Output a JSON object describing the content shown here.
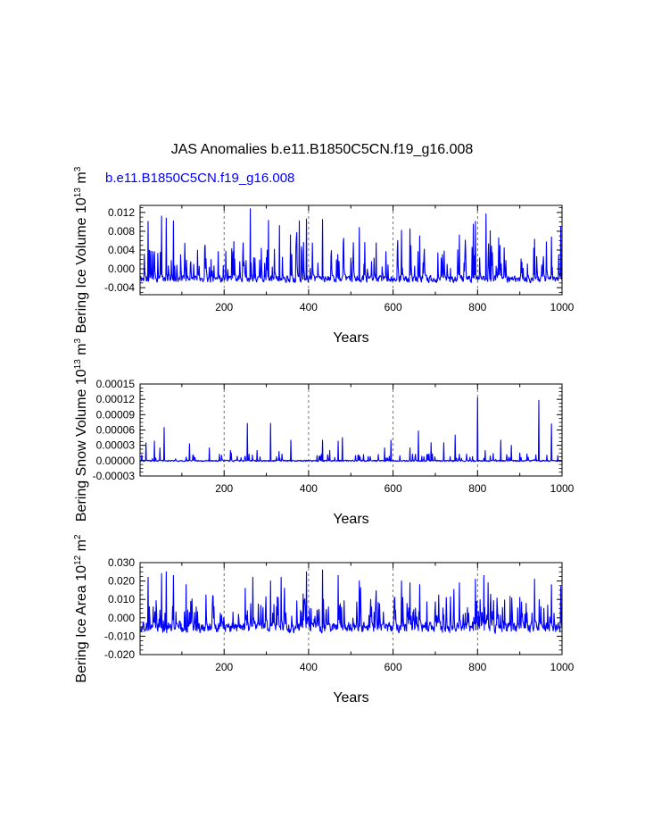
{
  "figure": {
    "title": "JAS Anomalies b.e11.B1850C5CN.f19_g16.008",
    "subtitle": "b.e11.B1850C5CN.f19_g16.008",
    "subtitle_color": "#0000ff",
    "line_color": "#0000ff",
    "gridline_color": "#555555"
  },
  "chart_data": [
    {
      "type": "line",
      "title": "",
      "xlabel": "Years",
      "ylabel_text": "Bering Ice Volume 10",
      "ylabel_exp": "13",
      "ylabel_unit": "m",
      "ylabel_unit_exp": "3",
      "xlim": [
        1,
        1000
      ],
      "ylim": [
        -0.0055,
        0.0135
      ],
      "xticks": [
        200,
        400,
        600,
        800,
        1000
      ],
      "xtick_labels": [
        "200",
        "400",
        "600",
        "800",
        "1000"
      ],
      "yticks": [
        -0.004,
        0.0,
        0.004,
        0.008,
        0.012
      ],
      "ytick_labels": [
        "-0.004",
        "0.000",
        "0.004",
        "0.008",
        "0.012"
      ],
      "grid_x": [
        200,
        400,
        600,
        800
      ],
      "series": [
        {
          "name": "Bering Ice Volume",
          "generator": {
            "seed": 11,
            "baseline": -0.0013,
            "noise_min": -0.004,
            "noise_max": -0.0012,
            "ar": 0.55,
            "p_spike": 0.13,
            "spike_min": 0.002,
            "spike_max": 0.0075,
            "min": -0.0045
          },
          "peaks": [
            {
              "x": 20,
              "y": 0.0101
            },
            {
              "x": 52,
              "y": 0.0112
            },
            {
              "x": 63,
              "y": 0.0108
            },
            {
              "x": 80,
              "y": 0.0102
            },
            {
              "x": 223,
              "y": 0.0058
            },
            {
              "x": 262,
              "y": 0.0128
            },
            {
              "x": 305,
              "y": 0.0103
            },
            {
              "x": 331,
              "y": 0.0092
            },
            {
              "x": 357,
              "y": 0.0072
            },
            {
              "x": 378,
              "y": 0.0102
            },
            {
              "x": 395,
              "y": 0.0106
            },
            {
              "x": 433,
              "y": 0.0105
            },
            {
              "x": 520,
              "y": 0.0088
            },
            {
              "x": 560,
              "y": 0.0055
            },
            {
              "x": 620,
              "y": 0.0082
            },
            {
              "x": 640,
              "y": 0.0085
            },
            {
              "x": 663,
              "y": 0.007
            },
            {
              "x": 757,
              "y": 0.0072
            },
            {
              "x": 790,
              "y": 0.0095
            },
            {
              "x": 795,
              "y": 0.0101
            },
            {
              "x": 820,
              "y": 0.0117
            },
            {
              "x": 830,
              "y": 0.0081
            },
            {
              "x": 850,
              "y": 0.0066
            },
            {
              "x": 935,
              "y": 0.0063
            },
            {
              "x": 975,
              "y": 0.0068
            },
            {
              "x": 997,
              "y": 0.009
            }
          ]
        }
      ]
    },
    {
      "type": "line",
      "title": "",
      "xlabel": "Years",
      "ylabel_text": "Bering Snow Volume 10",
      "ylabel_exp": "13",
      "ylabel_unit": "m",
      "ylabel_unit_exp": "3",
      "xlim": [
        1,
        1000
      ],
      "ylim": [
        -3e-05,
        0.00015
      ],
      "xticks": [
        200,
        400,
        600,
        800,
        1000
      ],
      "xtick_labels": [
        "200",
        "400",
        "600",
        "800",
        "1000"
      ],
      "yticks": [
        -3e-05,
        0.0,
        3e-05,
        6e-05,
        9e-05,
        0.00012,
        0.00015
      ],
      "ytick_labels": [
        "-0.00003",
        "0.00000",
        "0.00003",
        "0.00006",
        "0.00009",
        "0.00012",
        "0.00015"
      ],
      "grid_x": [
        200,
        400,
        600,
        800
      ],
      "series": [
        {
          "name": "Bering Snow Volume",
          "generator": {
            "seed": 23,
            "baseline": 0.0,
            "noise_min": -2e-06,
            "noise_max": 1.5e-06,
            "ar": 0.3,
            "p_spike": 0.06,
            "spike_min": 3e-06,
            "spike_max": 1.4e-05,
            "min": -4e-06
          },
          "peaks": [
            {
              "x": 15,
              "y": 3.5e-05
            },
            {
              "x": 35,
              "y": 3.8e-05
            },
            {
              "x": 48,
              "y": 2.5e-05
            },
            {
              "x": 58,
              "y": 6.5e-05
            },
            {
              "x": 118,
              "y": 3.3e-05
            },
            {
              "x": 165,
              "y": 2.5e-05
            },
            {
              "x": 215,
              "y": 2e-05
            },
            {
              "x": 255,
              "y": 7.3e-05
            },
            {
              "x": 278,
              "y": 2e-05
            },
            {
              "x": 310,
              "y": 7.3e-05
            },
            {
              "x": 330,
              "y": 1.8e-05
            },
            {
              "x": 358,
              "y": 4e-05
            },
            {
              "x": 420,
              "y": 1e-05
            },
            {
              "x": 433,
              "y": 4e-05
            },
            {
              "x": 450,
              "y": 2e-05
            },
            {
              "x": 470,
              "y": 3.8e-05
            },
            {
              "x": 480,
              "y": 4.5e-05
            },
            {
              "x": 530,
              "y": 1.2e-05
            },
            {
              "x": 580,
              "y": 2.5e-05
            },
            {
              "x": 595,
              "y": 4e-05
            },
            {
              "x": 640,
              "y": 2.5e-05
            },
            {
              "x": 660,
              "y": 5.8e-05
            },
            {
              "x": 690,
              "y": 3.5e-05
            },
            {
              "x": 720,
              "y": 3.5e-05
            },
            {
              "x": 747,
              "y": 5e-05
            },
            {
              "x": 800,
              "y": 0.000123
            },
            {
              "x": 818,
              "y": 2e-05
            },
            {
              "x": 855,
              "y": 4e-05
            },
            {
              "x": 880,
              "y": 3e-05
            },
            {
              "x": 900,
              "y": 1.5e-05
            },
            {
              "x": 945,
              "y": 0.000118
            },
            {
              "x": 975,
              "y": 7.2e-05
            },
            {
              "x": 990,
              "y": 1e-05
            }
          ]
        }
      ]
    },
    {
      "type": "line",
      "title": "",
      "xlabel": "Years",
      "ylabel_text": "Bering Ice Area 10",
      "ylabel_exp": "12",
      "ylabel_unit": "m",
      "ylabel_unit_exp": "2",
      "xlim": [
        1,
        1000
      ],
      "ylim": [
        -0.02,
        0.03
      ],
      "xticks": [
        200,
        400,
        600,
        800,
        1000
      ],
      "xtick_labels": [
        "200",
        "400",
        "600",
        "800",
        "1000"
      ],
      "yticks": [
        -0.02,
        -0.01,
        0.0,
        0.01,
        0.02,
        0.03
      ],
      "ytick_labels": [
        "-0.020",
        "-0.010",
        "0.000",
        "0.010",
        "0.020",
        "0.030"
      ],
      "grid_x": [
        200,
        400,
        600,
        800
      ],
      "series": [
        {
          "name": "Bering Ice Area",
          "generator": {
            "seed": 37,
            "baseline": -0.003,
            "noise_min": -0.011,
            "noise_max": -0.001,
            "ar": 0.5,
            "p_spike": 0.18,
            "spike_min": 0.004,
            "spike_max": 0.016,
            "min": -0.0125
          },
          "peaks": [
            {
              "x": 20,
              "y": 0.022
            },
            {
              "x": 52,
              "y": 0.024
            },
            {
              "x": 63,
              "y": 0.025
            },
            {
              "x": 80,
              "y": 0.023
            },
            {
              "x": 110,
              "y": 0.018
            },
            {
              "x": 250,
              "y": 0.016
            },
            {
              "x": 268,
              "y": 0.022
            },
            {
              "x": 310,
              "y": 0.02
            },
            {
              "x": 335,
              "y": 0.022
            },
            {
              "x": 395,
              "y": 0.025
            },
            {
              "x": 433,
              "y": 0.026
            },
            {
              "x": 470,
              "y": 0.023
            },
            {
              "x": 520,
              "y": 0.02
            },
            {
              "x": 620,
              "y": 0.02
            },
            {
              "x": 640,
              "y": 0.019
            },
            {
              "x": 663,
              "y": 0.018
            },
            {
              "x": 757,
              "y": 0.019
            },
            {
              "x": 795,
              "y": 0.021
            },
            {
              "x": 815,
              "y": 0.023
            },
            {
              "x": 825,
              "y": 0.019
            },
            {
              "x": 935,
              "y": 0.021
            },
            {
              "x": 975,
              "y": 0.018
            },
            {
              "x": 997,
              "y": 0.017
            }
          ]
        }
      ]
    }
  ]
}
